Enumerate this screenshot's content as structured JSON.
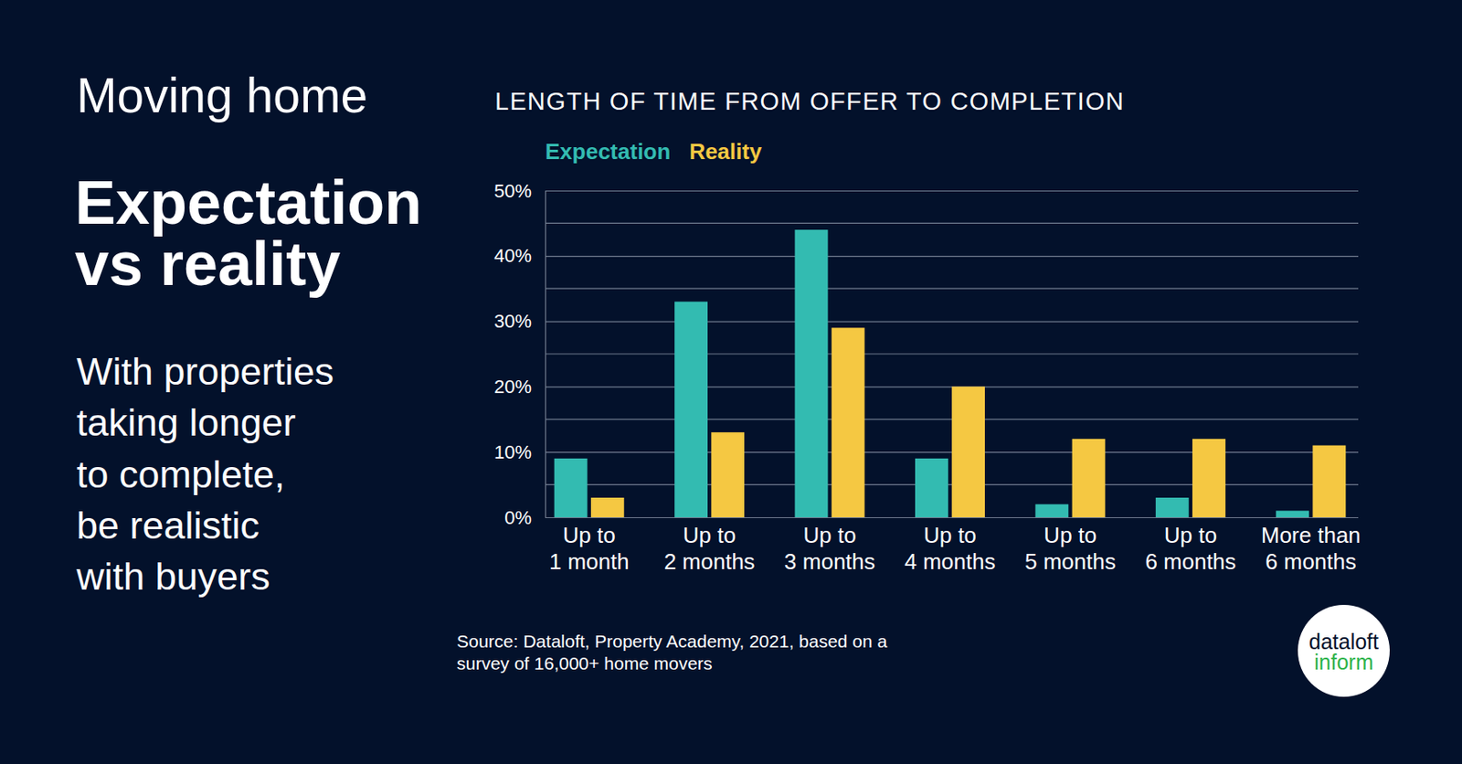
{
  "panel": {
    "kicker": "Moving home",
    "headline": [
      "Expectation",
      "vs reality"
    ],
    "text": [
      "With properties",
      "taking longer",
      "to complete,",
      "be realistic",
      "with buyers"
    ],
    "logo": [
      "dataloft",
      "inform"
    ]
  },
  "chart_data": {
    "type": "bar",
    "title": "LENGTH OF TIME FROM OFFER TO COMPLETION",
    "categories": [
      "Up to\n1 month",
      "Up to\n2 months",
      "Up to\n3 months",
      "Up to\n4 months",
      "Up to\n5 months",
      "Up to\n6 months",
      "More than\n6 months"
    ],
    "series": [
      {
        "name": "Expectation",
        "color": "#33bbb1",
        "values": [
          9,
          33,
          44,
          9,
          2,
          3,
          1
        ]
      },
      {
        "name": "Reality",
        "color": "#f5c842",
        "values": [
          3,
          13,
          29,
          20,
          12,
          12,
          11
        ]
      }
    ],
    "ylim": [
      0,
      50
    ],
    "yticks": [
      {
        "value": 0,
        "label": "0%"
      },
      {
        "value": 10,
        "label": "10%"
      },
      {
        "value": 20,
        "label": "20%"
      },
      {
        "value": 30,
        "label": "30%"
      },
      {
        "value": 40,
        "label": "40%"
      },
      {
        "value": 50,
        "label": "50%"
      }
    ],
    "minor_yticks": [
      5,
      15,
      25,
      35,
      45
    ],
    "grid": true,
    "legend": "top-left",
    "source": [
      "Source: Dataloft, Property Academy, 2021, based on a",
      "survey of 16,000+ home movers"
    ]
  }
}
